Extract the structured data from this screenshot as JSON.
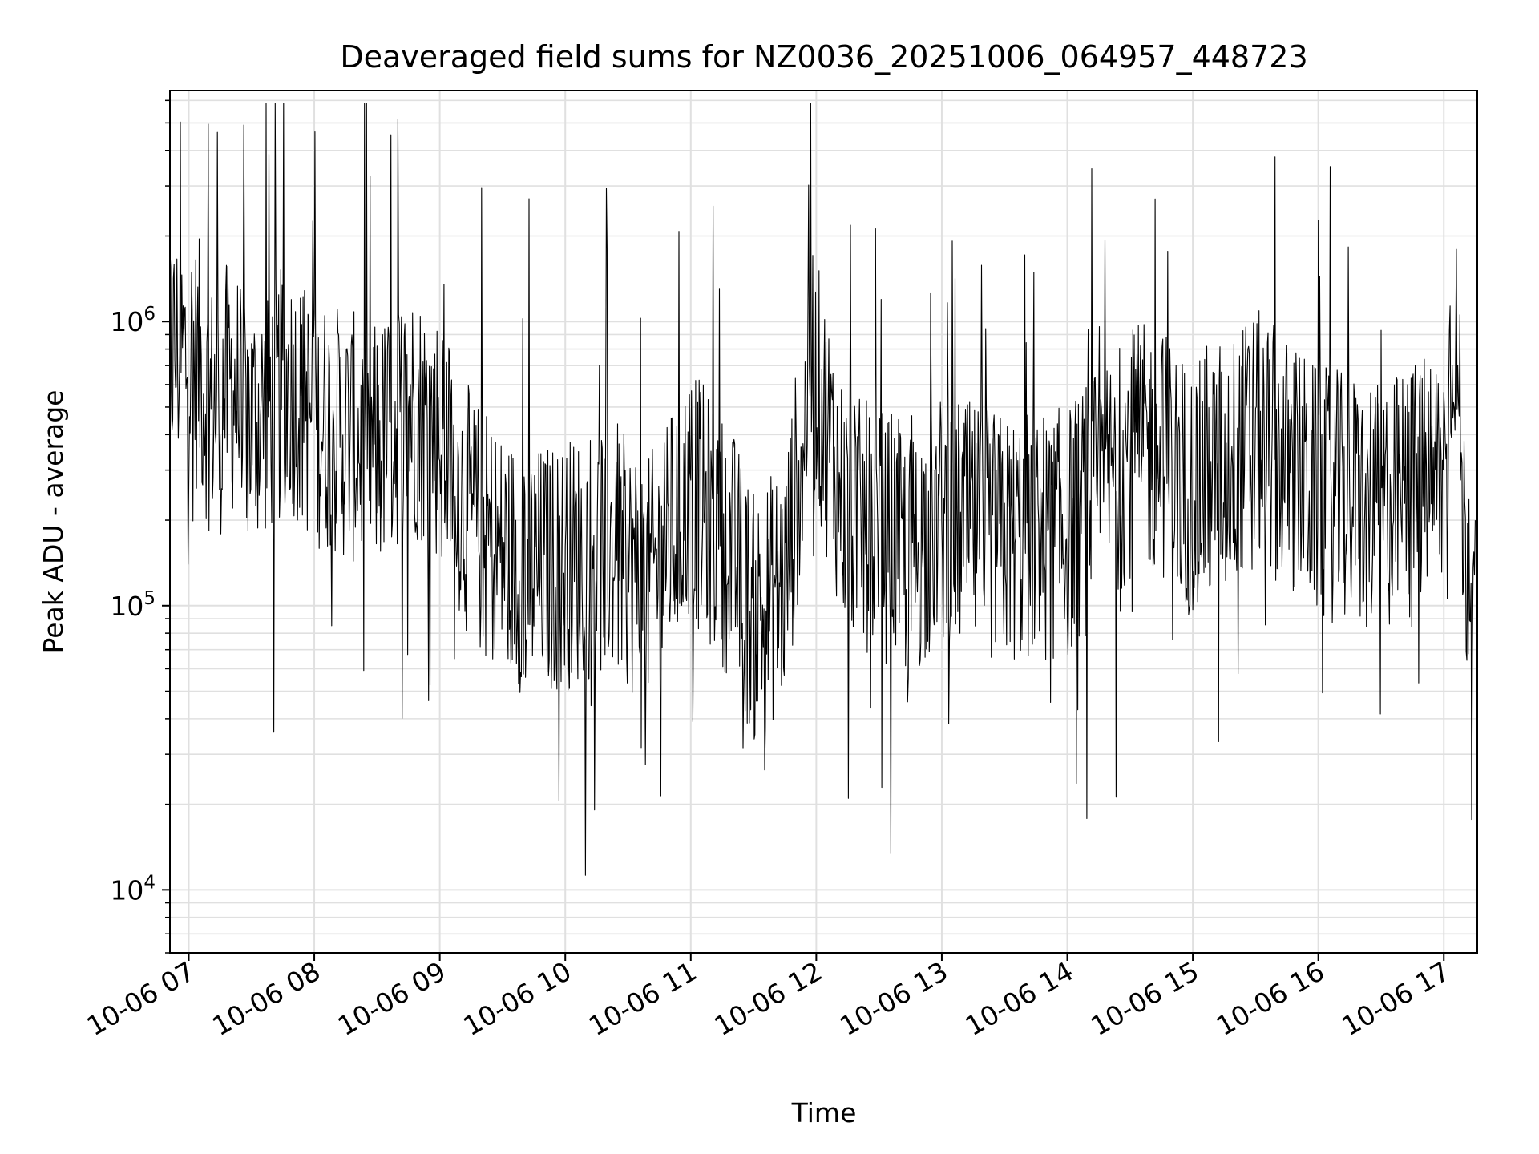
{
  "chart_data": {
    "type": "line",
    "title": "Deaveraged field sums for NZ0036_20251006_064957_448723",
    "xlabel": "Time",
    "ylabel": "Peak ADU - average",
    "yscale": "log",
    "ylim": [
      6000,
      6500000
    ],
    "xlim": [
      "2025-10-06 06:51",
      "2025-10-06 17:16"
    ],
    "grid": true,
    "grid_color": "#e0e0e0",
    "line_color": "#000000",
    "x_ticks": [
      {
        "value": "2025-10-06 07:00",
        "label": "10-06 07"
      },
      {
        "value": "2025-10-06 08:00",
        "label": "10-06 08"
      },
      {
        "value": "2025-10-06 09:00",
        "label": "10-06 09"
      },
      {
        "value": "2025-10-06 10:00",
        "label": "10-06 10"
      },
      {
        "value": "2025-10-06 11:00",
        "label": "10-06 11"
      },
      {
        "value": "2025-10-06 12:00",
        "label": "10-06 12"
      },
      {
        "value": "2025-10-06 13:00",
        "label": "10-06 13"
      },
      {
        "value": "2025-10-06 14:00",
        "label": "10-06 14"
      },
      {
        "value": "2025-10-06 15:00",
        "label": "10-06 15"
      },
      {
        "value": "2025-10-06 16:00",
        "label": "10-06 16"
      },
      {
        "value": "2025-10-06 17:00",
        "label": "10-06 17"
      }
    ],
    "y_ticks": [
      {
        "value": 10000,
        "base": "10",
        "exp": "4"
      },
      {
        "value": 100000,
        "base": "10",
        "exp": "5"
      },
      {
        "value": 1000000,
        "base": "10",
        "exp": "6"
      }
    ],
    "series": [
      {
        "x": [
          "2025-10-06 06:50",
          "2025-10-06 07:05",
          "2025-10-06 07:10",
          "2025-10-06 07:20",
          "2025-10-06 07:30",
          "2025-10-06 07:40",
          "2025-10-06 07:48",
          "2025-10-06 08:00",
          "2025-10-06 08:15",
          "2025-10-06 08:30",
          "2025-10-06 08:45",
          "2025-10-06 09:00",
          "2025-10-06 09:15",
          "2025-10-06 09:30",
          "2025-10-06 09:45",
          "2025-10-06 10:00",
          "2025-10-06 10:20",
          "2025-10-06 10:40",
          "2025-10-06 11:00",
          "2025-10-06 11:20",
          "2025-10-06 11:30",
          "2025-10-06 11:45",
          "2025-10-06 11:58",
          "2025-10-06 12:15",
          "2025-10-06 12:30",
          "2025-10-06 12:45",
          "2025-10-06 13:00",
          "2025-10-06 13:30",
          "2025-10-06 14:00",
          "2025-10-06 14:30",
          "2025-10-06 14:45",
          "2025-10-06 15:00",
          "2025-10-06 15:15",
          "2025-10-06 15:30",
          "2025-10-06 16:00",
          "2025-10-06 16:30",
          "2025-10-06 16:45",
          "2025-10-06 17:00",
          "2025-10-06 17:05",
          "2025-10-06 17:10",
          "2025-10-06 17:15"
        ],
        "y": [
          800000,
          700000,
          500000,
          600000,
          450000,
          500000,
          600000,
          450000,
          400000,
          350000,
          500000,
          400000,
          200000,
          150000,
          130000,
          140000,
          160000,
          120000,
          250000,
          150000,
          90000,
          120000,
          700000,
          200000,
          180000,
          150000,
          200000,
          170000,
          180000,
          350000,
          350000,
          250000,
          300000,
          400000,
          250000,
          220000,
          260000,
          300000,
          1200000,
          150000,
          200000
        ]
      }
    ]
  }
}
